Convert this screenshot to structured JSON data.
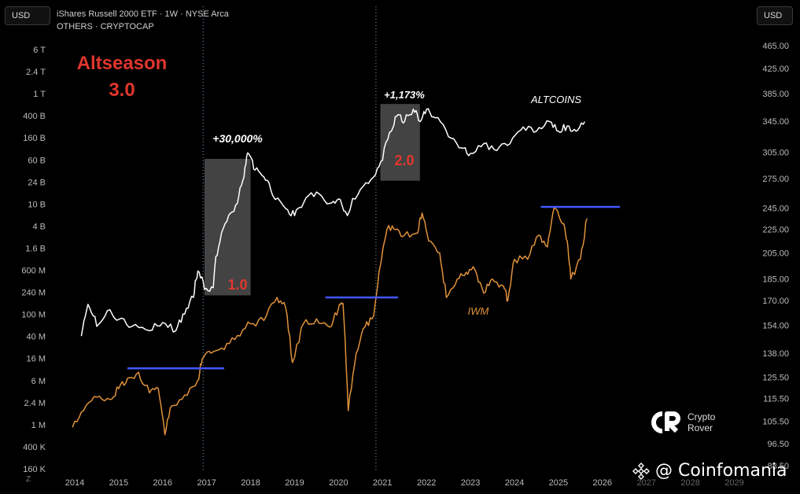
{
  "header": {
    "currency_left": "USD",
    "currency_right": "USD",
    "line1": "iShares Russell 2000 ETF · 1W · NYSE Arca",
    "line2": "OTHERS · CRYPTOCAP"
  },
  "overlay": {
    "title_line1": "Altseason",
    "title_line2": "3.0",
    "pct1": "+30,000%",
    "pct2": "+1,173%",
    "box1": "1.0",
    "box2": "2.0",
    "altcoins": "ALTCOINS",
    "iwm": "IWM",
    "colors": {
      "accent_red": "#e0362e",
      "highlight_box": "#4a4a4a",
      "blue_line": "#4258ff",
      "iwm_line": "#e0923a",
      "alt_line": "#ffffff"
    }
  },
  "brand": {
    "name_line1": "Crypto",
    "name_line2": "Rover",
    "icon": "crypto-rover-logo-icon"
  },
  "watermark": {
    "text": "@ Coinfomania",
    "icon": "binance-diamond-icon"
  },
  "zoom_button": "Z",
  "chart_data": {
    "type": "line",
    "x_ticks": [
      "2014",
      "2015",
      "2016",
      "2017",
      "2018",
      "2019",
      "2020",
      "2021",
      "2022",
      "2023",
      "2024",
      "2025",
      "2026",
      "2027",
      "2028",
      "2029"
    ],
    "left_axis": {
      "scale": "log",
      "ticks": [
        "6 T",
        "2.4 T",
        "1 T",
        "400 B",
        "160 B",
        "60 B",
        "24 B",
        "10 B",
        "4 B",
        "1.6 B",
        "600 M",
        "240 M",
        "100 M",
        "40 M",
        "16 M",
        "6 M",
        "2.4 M",
        "1 M",
        "400 K",
        "160 K"
      ]
    },
    "right_axis": {
      "scale": "log",
      "ticks": [
        "465.00",
        "425.00",
        "385.00",
        "345.00",
        "305.00",
        "275.00",
        "245.00",
        "225.00",
        "205.00",
        "185.00",
        "170.00",
        "154.00",
        "138.00",
        "125.50",
        "115.50",
        "105.50",
        "96.50",
        "88.50"
      ]
    },
    "vlines": [
      2016.92,
      2020.85
    ],
    "series": [
      {
        "name": "ALTCOINS",
        "axis": "left",
        "color": "#ffffff",
        "points": [
          [
            2014.15,
            40000000.0
          ],
          [
            2014.3,
            150000000.0
          ],
          [
            2014.5,
            60000000.0
          ],
          [
            2014.8,
            120000000.0
          ],
          [
            2015.0,
            80000000.0
          ],
          [
            2015.3,
            60000000.0
          ],
          [
            2015.7,
            50000000.0
          ],
          [
            2016.0,
            70000000.0
          ],
          [
            2016.3,
            50000000.0
          ],
          [
            2016.5,
            100000000.0
          ],
          [
            2016.7,
            200000000.0
          ],
          [
            2016.8,
            600000000.0
          ],
          [
            2016.95,
            280000000.0
          ],
          [
            2017.15,
            300000000.0
          ],
          [
            2017.3,
            2000000000.0
          ],
          [
            2017.5,
            6000000000.0
          ],
          [
            2017.7,
            10000000000.0
          ],
          [
            2017.85,
            30000000000.0
          ],
          [
            2017.95,
            80000000000.0
          ],
          [
            2018.1,
            40000000000.0
          ],
          [
            2018.3,
            30000000000.0
          ],
          [
            2018.5,
            14000000000.0
          ],
          [
            2018.8,
            8000000000.0
          ],
          [
            2019.0,
            6000000000.0
          ],
          [
            2019.2,
            10000000000.0
          ],
          [
            2019.5,
            16000000000.0
          ],
          [
            2019.8,
            10000000000.0
          ],
          [
            2020.0,
            12000000000.0
          ],
          [
            2020.2,
            6000000000.0
          ],
          [
            2020.5,
            18000000000.0
          ],
          [
            2020.8,
            30000000000.0
          ],
          [
            2021.0,
            60000000000.0
          ],
          [
            2021.2,
            200000000000.0
          ],
          [
            2021.35,
            400000000000.0
          ],
          [
            2021.5,
            300000000000.0
          ],
          [
            2021.7,
            500000000000.0
          ],
          [
            2021.85,
            300000000000.0
          ],
          [
            2022.0,
            500000000000.0
          ],
          [
            2022.2,
            350000000000.0
          ],
          [
            2022.5,
            160000000000.0
          ],
          [
            2022.8,
            100000000000.0
          ],
          [
            2023.0,
            80000000000.0
          ],
          [
            2023.3,
            120000000000.0
          ],
          [
            2023.6,
            90000000000.0
          ],
          [
            2023.9,
            120000000000.0
          ],
          [
            2024.2,
            240000000000.0
          ],
          [
            2024.5,
            200000000000.0
          ],
          [
            2024.8,
            300000000000.0
          ],
          [
            2025.0,
            200000000000.0
          ],
          [
            2025.2,
            250000000000.0
          ],
          [
            2025.4,
            200000000000.0
          ],
          [
            2025.6,
            300000000000.0
          ]
        ]
      },
      {
        "name": "IWM",
        "axis": "right",
        "color": "#e0923a",
        "points": [
          [
            2013.95,
            103
          ],
          [
            2014.2,
            110
          ],
          [
            2014.5,
            116
          ],
          [
            2014.8,
            115
          ],
          [
            2015.0,
            120
          ],
          [
            2015.2,
            125
          ],
          [
            2015.45,
            128
          ],
          [
            2015.7,
            118
          ],
          [
            2015.9,
            120
          ],
          [
            2016.05,
            100
          ],
          [
            2016.2,
            112
          ],
          [
            2016.5,
            117
          ],
          [
            2016.8,
            124
          ],
          [
            2016.9,
            135
          ],
          [
            2017.1,
            138
          ],
          [
            2017.4,
            140
          ],
          [
            2017.7,
            148
          ],
          [
            2018.0,
            155
          ],
          [
            2018.3,
            157
          ],
          [
            2018.6,
            172
          ],
          [
            2018.8,
            165
          ],
          [
            2018.95,
            133
          ],
          [
            2019.2,
            155
          ],
          [
            2019.5,
            158
          ],
          [
            2019.8,
            153
          ],
          [
            2020.0,
            165
          ],
          [
            2020.1,
            168
          ],
          [
            2020.22,
            110
          ],
          [
            2020.4,
            138
          ],
          [
            2020.6,
            153
          ],
          [
            2020.8,
            160
          ],
          [
            2020.95,
            195
          ],
          [
            2021.1,
            225
          ],
          [
            2021.3,
            225
          ],
          [
            2021.5,
            220
          ],
          [
            2021.8,
            222
          ],
          [
            2021.9,
            240
          ],
          [
            2022.05,
            215
          ],
          [
            2022.3,
            205
          ],
          [
            2022.45,
            172
          ],
          [
            2022.7,
            185
          ],
          [
            2022.9,
            190
          ],
          [
            2023.1,
            192
          ],
          [
            2023.3,
            175
          ],
          [
            2023.5,
            185
          ],
          [
            2023.75,
            180
          ],
          [
            2023.85,
            170
          ],
          [
            2024.0,
            200
          ],
          [
            2024.3,
            200
          ],
          [
            2024.55,
            220
          ],
          [
            2024.75,
            210
          ],
          [
            2024.9,
            245
          ],
          [
            2025.1,
            230
          ],
          [
            2025.2,
            215
          ],
          [
            2025.28,
            185
          ],
          [
            2025.5,
            200
          ],
          [
            2025.65,
            235
          ]
        ]
      }
    ],
    "threshold_lines": [
      {
        "axis": "right",
        "value": 130,
        "x0": 2015.2,
        "x1": 2017.4
      },
      {
        "axis": "right",
        "value": 172,
        "x0": 2019.7,
        "x1": 2021.35
      },
      {
        "axis": "right",
        "value": 246,
        "x0": 2024.6,
        "x1": 2026.4
      }
    ],
    "highlight_boxes": [
      {
        "label": "1.0",
        "x0": 2016.95,
        "x1": 2018.0
      },
      {
        "label": "2.0",
        "x0": 2020.95,
        "x1": 2021.85
      }
    ]
  }
}
